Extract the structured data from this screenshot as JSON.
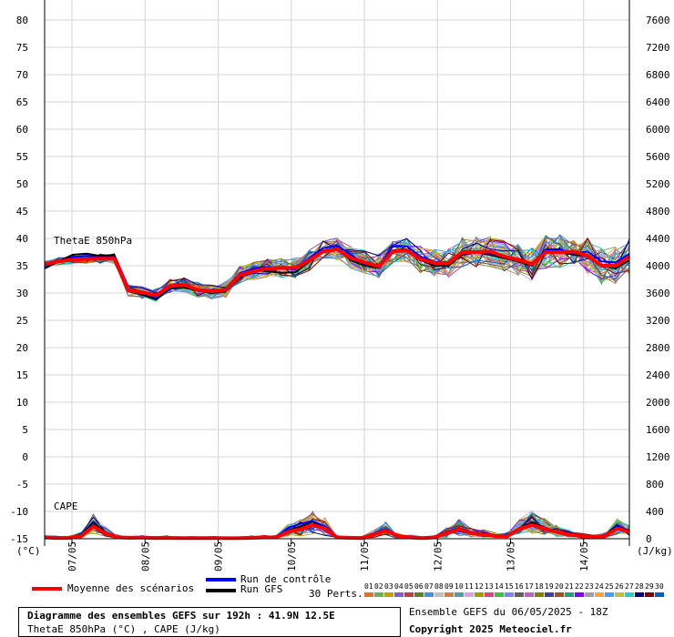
{
  "chart_data": {
    "type": "line",
    "left_axis": {
      "unit_label": "(°C)",
      "ticks": [
        80,
        75,
        70,
        65,
        60,
        55,
        50,
        45,
        40,
        35,
        30,
        25,
        20,
        15,
        10,
        5,
        0,
        -5,
        -10,
        -15
      ],
      "range": [
        -15,
        80
      ]
    },
    "right_axis": {
      "unit_label": "(J/kg)",
      "ticks": [
        7600,
        7200,
        6800,
        6400,
        6000,
        5600,
        5200,
        4800,
        4400,
        4000,
        3600,
        3200,
        2800,
        2400,
        2000,
        1600,
        1200,
        800,
        400,
        0
      ],
      "range": [
        0,
        7600
      ]
    },
    "x_ticks": [
      "07/05",
      "08/05",
      "09/05",
      "10/05",
      "11/05",
      "12/05",
      "13/05",
      "14/05"
    ],
    "grid": true,
    "annotations": [
      "ThetaE 850hPa",
      "CAPE"
    ],
    "series": [
      {
        "name": "Moyenne des scénarios",
        "color": "#ff0000",
        "thetae": [
          35.3,
          35.8,
          36.1,
          36.2,
          36.3,
          36.3,
          30.5,
          30.1,
          29.6,
          31.3,
          31.5,
          30.6,
          30.3,
          30.6,
          33.3,
          34.0,
          34.5,
          34.6,
          34.6,
          36.0,
          37.6,
          38.0,
          36.4,
          35.6,
          34.9,
          37.6,
          37.8,
          36.2,
          35.5,
          35.5,
          37.5,
          37.5,
          37.6,
          36.7,
          36.1,
          35.3,
          37.5,
          37.5,
          37.6,
          36.8,
          35.0,
          35.0,
          36.7
        ],
        "cape": [
          20,
          12,
          14,
          40,
          180,
          80,
          20,
          15,
          18,
          12,
          14,
          10,
          10,
          10,
          10,
          8,
          10,
          15,
          20,
          20,
          100,
          140,
          200,
          150,
          20,
          15,
          10,
          60,
          120,
          40,
          20,
          10,
          20,
          80,
          140,
          80,
          60,
          40,
          40,
          150,
          200,
          150,
          100,
          60,
          40,
          20,
          40,
          150,
          100
        ]
      },
      {
        "name": "Run de contrôle",
        "color": "#0000ff",
        "thetae": [
          35.0,
          35.7,
          36.6,
          36.8,
          36.6,
          36.6,
          30.8,
          30.0,
          29.2,
          31.0,
          31.5,
          30.5,
          30.3,
          30.8,
          33.6,
          34.5,
          34.8,
          34.5,
          34.3,
          36.4,
          38.2,
          38.7,
          37.0,
          35.2,
          35.0,
          38.5,
          38.6,
          36.7,
          35.7,
          35.3,
          37.5,
          37.6,
          37.3,
          36.6,
          36.3,
          35.2,
          38.0,
          38.0,
          37.2,
          37.6,
          35.8,
          35.6,
          37.2
        ],
        "cape": [
          20,
          10,
          14,
          50,
          200,
          90,
          20,
          15,
          18,
          12,
          14,
          10,
          10,
          10,
          10,
          8,
          10,
          15,
          20,
          20,
          160,
          220,
          260,
          180,
          20,
          15,
          10,
          80,
          140,
          50,
          20,
          10,
          20,
          100,
          160,
          100,
          60,
          40,
          40,
          160,
          220,
          160,
          100,
          60,
          40,
          20,
          40,
          180,
          120
        ]
      },
      {
        "name": "Run GFS",
        "color": "#000000",
        "thetae": [
          34.5,
          35.8,
          37.0,
          37.2,
          36.8,
          37.0,
          30.3,
          29.7,
          28.8,
          30.8,
          31.0,
          30.5,
          30.0,
          30.3,
          33.0,
          34.3,
          34.0,
          33.7,
          33.8,
          35.7,
          37.8,
          38.0,
          36.0,
          35.0,
          34.6,
          37.8,
          38.0,
          36.0,
          35.0,
          35.0,
          37.0,
          37.5,
          37.0,
          36.4,
          35.8,
          35.0,
          37.5,
          37.5,
          37.0,
          36.8,
          35.0,
          34.5,
          36.0
        ],
        "cape": [
          20,
          12,
          14,
          50,
          240,
          90,
          20,
          15,
          18,
          12,
          14,
          10,
          10,
          10,
          10,
          8,
          10,
          15,
          20,
          20,
          120,
          180,
          250,
          160,
          20,
          15,
          10,
          70,
          140,
          40,
          20,
          10,
          20,
          90,
          150,
          90,
          60,
          40,
          40,
          160,
          240,
          170,
          100,
          60,
          40,
          20,
          40,
          190,
          110
        ]
      }
    ]
  },
  "legend": {
    "mean_label": "Moyenne des scénarios",
    "control_label": "Run de contrôle",
    "gfs_label": "Run GFS",
    "perts_label": "30 Perts.",
    "pert_numbers": [
      "01",
      "02",
      "03",
      "04",
      "05",
      "06",
      "07",
      "08",
      "09",
      "10",
      "11",
      "12",
      "13",
      "14",
      "15",
      "16",
      "17",
      "18",
      "19",
      "20",
      "21",
      "22",
      "23",
      "24",
      "25",
      "26",
      "27",
      "28",
      "29",
      "30"
    ],
    "pert_colors": [
      "#e07030",
      "#70b050",
      "#c8a000",
      "#8060c0",
      "#c04040",
      "#608020",
      "#4090e0",
      "#c0c0c0",
      "#d08040",
      "#50a0a0",
      "#e0a0e0",
      "#a0a000",
      "#e04080",
      "#40c040",
      "#8080ff",
      "#606060",
      "#c060c0",
      "#808000",
      "#4040a0",
      "#a05020",
      "#20a080",
      "#8000ff",
      "#a0a0a0",
      "#ffa040",
      "#40a0ff",
      "#c0c040",
      "#20d0d0",
      "#000080",
      "#800000",
      "#0060c0"
    ]
  },
  "footer": {
    "title": "Diagramme des ensembles GEFS sur 192h : 41.9N 12.5E",
    "subtitle": "ThetaE 850hPa (°C) , CAPE (J/kg)",
    "run_info": "Ensemble GEFS du 06/05/2025 - 18Z",
    "copyright": "Copyright 2025 Meteociel.fr"
  }
}
